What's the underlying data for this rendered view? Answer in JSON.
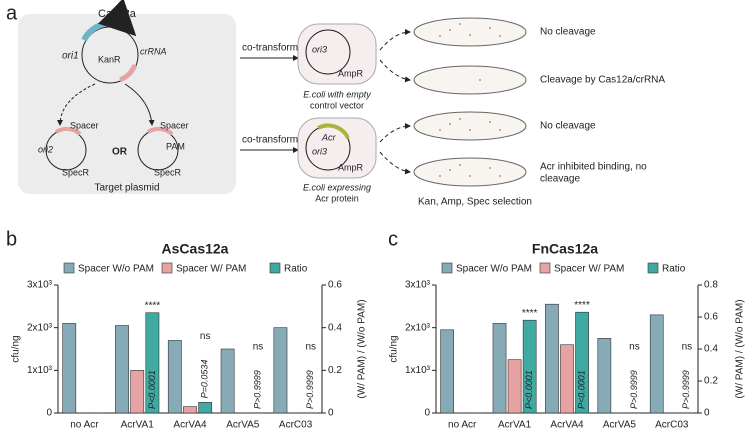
{
  "panel_labels": [
    "a",
    "b",
    "c"
  ],
  "diagram": {
    "cas12a": "Cas12a",
    "ori1": "ori1",
    "kanr": "KanR",
    "crrna": "crRNA",
    "ori2": "ori2",
    "spacer_left": "Spacer",
    "or": "OR",
    "spacer_right": "Spacer",
    "pam": "PAM",
    "specr_left": "SpecR",
    "specr_right": "SpecR",
    "target_plasmid": "Target plasmid",
    "cotransform_1": "co-transform",
    "cotransform_2": "co-transform",
    "ori3_1": "ori3",
    "ampr_1": "AmpR",
    "ecoli_empty": [
      "E.coli with empty",
      "control vector"
    ],
    "acr": "Acr",
    "ori3_2": "ori3",
    "ampr_2": "AmpR",
    "ecoli_acr": [
      "E.coli expressing",
      "Acr protein"
    ],
    "outcome_1": "No cleavage",
    "outcome_2": "Cleavage by Cas12a/crRNA",
    "outcome_3": "No cleavage",
    "outcome_4": [
      "Acr inhibited binding, no",
      "cleavage"
    ],
    "selection": "Kan, Amp, Spec selection"
  },
  "chart_data": [
    {
      "type": "bar",
      "title": "AsCas12a",
      "ylabel": "cfu/ng",
      "y2label": "(W/ PAM) / (W/o PAM)",
      "categories": [
        "no Acr",
        "AcrVA1",
        "AcrVA4",
        "AcrVA5",
        "AcrC03"
      ],
      "series": [
        {
          "name": "Spacer W/o PAM",
          "color": "#86aab6",
          "values": [
            2100,
            2050,
            1700,
            1500,
            2000
          ]
        },
        {
          "name": "Spacer W/ PAM",
          "color": "#e6a3a3",
          "values": [
            0,
            1000,
            150,
            0,
            0
          ]
        },
        {
          "name": "Ratio",
          "color": "#3fa9a2",
          "axis": "y2",
          "values": [
            0,
            0.47,
            0.05,
            0,
            0
          ]
        }
      ],
      "significance": [
        null,
        "****",
        "ns",
        "ns",
        "ns"
      ],
      "p_values": [
        null,
        "P<0.0001",
        "P=0.0534",
        "P>0.9999",
        "P>0.9999"
      ],
      "ylim": [
        0,
        3000
      ],
      "yticks": [
        0,
        {
          "value": 1000,
          "label": "1x10³"
        },
        {
          "value": 2000,
          "label": "2x10³"
        },
        {
          "value": 3000,
          "label": "3x10³"
        }
      ],
      "y2lim": [
        0,
        0.6
      ],
      "y2ticks": [
        0,
        0.2,
        0.4,
        0.6
      ],
      "legend": "top"
    },
    {
      "type": "bar",
      "title": "FnCas12a",
      "ylabel": "cfu/ng",
      "y2label": "(W/ PAM) / (W/o PAM)",
      "categories": [
        "no Acr",
        "AcrVA1",
        "AcrVA4",
        "AcrVA5",
        "AcrC03"
      ],
      "series": [
        {
          "name": "Spacer W/o PAM",
          "color": "#86aab6",
          "values": [
            1950,
            2100,
            2550,
            1750,
            2300
          ]
        },
        {
          "name": "Spacer W/ PAM",
          "color": "#e6a3a3",
          "values": [
            0,
            1250,
            1600,
            0,
            0
          ]
        },
        {
          "name": "Ratio",
          "color": "#3fa9a2",
          "axis": "y2",
          "values": [
            0,
            0.58,
            0.63,
            0,
            0
          ]
        }
      ],
      "significance": [
        null,
        "****",
        "****",
        "ns",
        "ns"
      ],
      "p_values": [
        null,
        "P<0.0001",
        "P<0.0001",
        "P>0.9999",
        "P>0.9999"
      ],
      "ylim": [
        0,
        3000
      ],
      "yticks": [
        0,
        {
          "value": 1000,
          "label": "1x10³"
        },
        {
          "value": 2000,
          "label": "2x10³"
        },
        {
          "value": 3000,
          "label": "3x10³"
        }
      ],
      "y2lim": [
        0,
        0.8
      ],
      "y2ticks": [
        0,
        0.2,
        0.4,
        0.6,
        0.8
      ],
      "legend": "top"
    }
  ]
}
